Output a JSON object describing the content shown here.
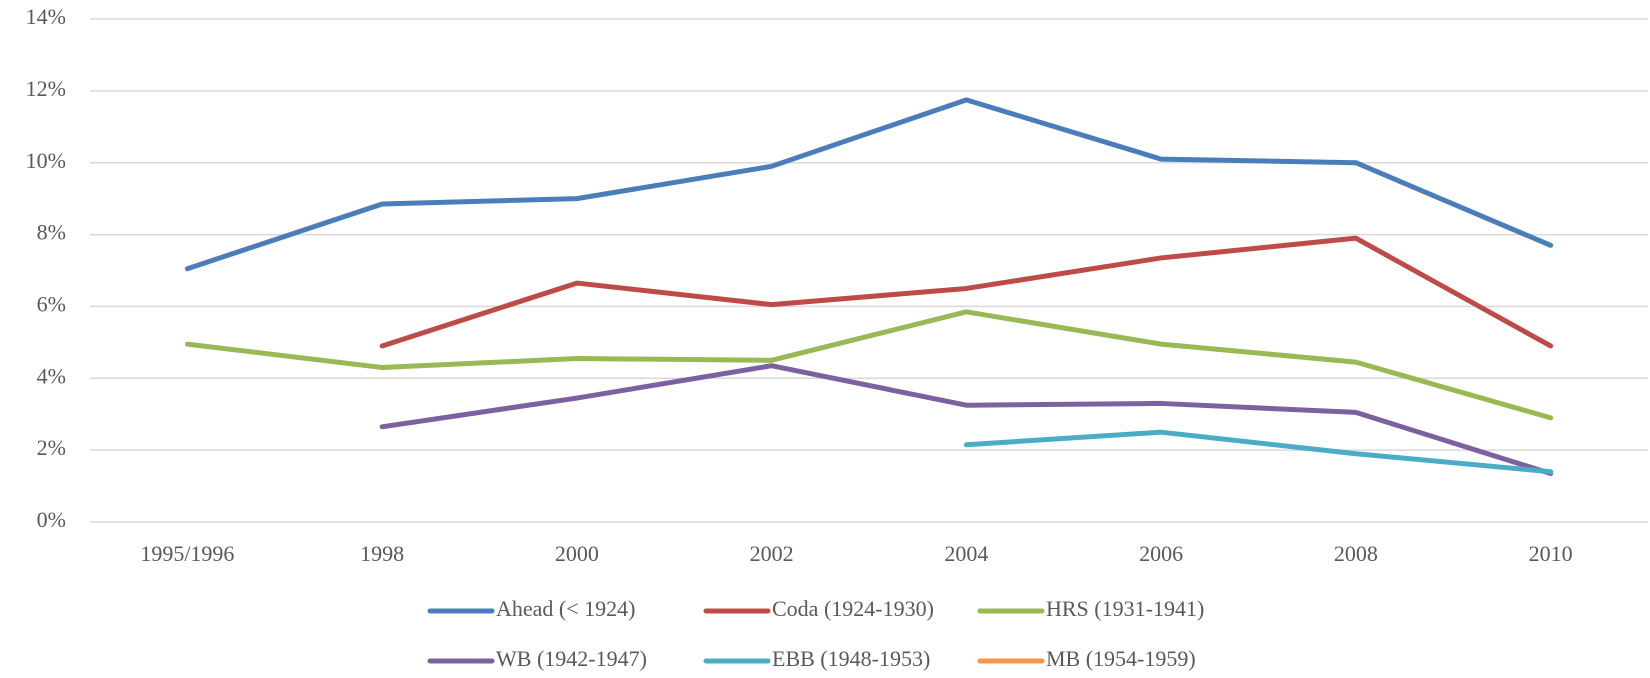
{
  "chart_data": {
    "type": "line",
    "categories": [
      "1995/1996",
      "1998",
      "2000",
      "2002",
      "2004",
      "2006",
      "2008",
      "2010"
    ],
    "series": [
      {
        "name": "Ahead (< 1924)",
        "color": "#4a7ebb",
        "values": [
          7.05,
          8.85,
          9.0,
          9.9,
          11.75,
          10.1,
          10.0,
          7.7
        ]
      },
      {
        "name": "Coda (1924-1930)",
        "color": "#be4b48",
        "values": [
          null,
          4.9,
          6.65,
          6.05,
          6.5,
          7.35,
          7.9,
          4.9
        ]
      },
      {
        "name": "HRS (1931-1941)",
        "color": "#98b954",
        "values": [
          4.95,
          4.3,
          4.55,
          4.5,
          5.85,
          4.95,
          4.45,
          2.9
        ]
      },
      {
        "name": "WB (1942-1947)",
        "color": "#7d60a0",
        "values": [
          null,
          2.65,
          3.45,
          4.35,
          3.25,
          3.3,
          3.05,
          1.35
        ]
      },
      {
        "name": "EBB (1948-1953)",
        "color": "#4bacc6",
        "values": [
          null,
          null,
          null,
          null,
          2.15,
          2.5,
          1.9,
          1.4
        ]
      },
      {
        "name": "MB (1954-1959)",
        "color": "#f79646",
        "values": [
          null,
          null,
          null,
          null,
          null,
          null,
          null,
          null
        ]
      }
    ],
    "ylim": [
      0,
      14
    ],
    "yticks": [
      {
        "value": 0,
        "label": "0%"
      },
      {
        "value": 2,
        "label": "2%"
      },
      {
        "value": 4,
        "label": "4%"
      },
      {
        "value": 6,
        "label": "6%"
      },
      {
        "value": 8,
        "label": "8%"
      },
      {
        "value": 10,
        "label": "10%"
      },
      {
        "value": 12,
        "label": "12%"
      },
      {
        "value": 14,
        "label": "14%"
      }
    ],
    "grid": true,
    "legend": "bottom"
  }
}
